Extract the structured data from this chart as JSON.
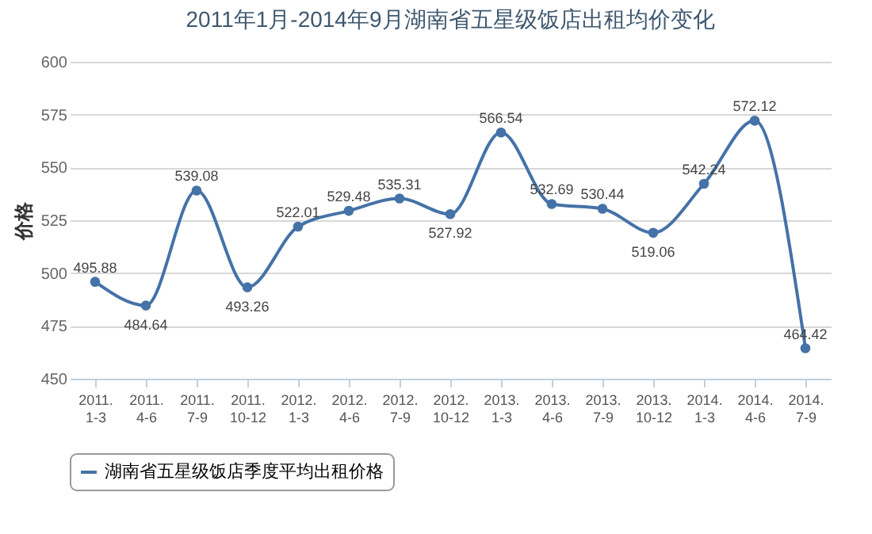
{
  "chart_data": {
    "type": "line",
    "title": "2011年1月-2014年9月湖南省五星级饭店出租均价变化",
    "ylabel": "价格",
    "categories": [
      "2011.1-3",
      "2011.4-6",
      "2011.7-9",
      "2011.10-12",
      "2012.1-3",
      "2012.4-6",
      "2012.7-9",
      "2012.10-12",
      "2013.1-3",
      "2013.4-6",
      "2013.7-9",
      "2013.10-12",
      "2014.1-3",
      "2014.4-6",
      "2014.7-9"
    ],
    "series": [
      {
        "name": "湖南省五星级饭店季度平均出租价格",
        "color": "#4572a7",
        "values": [
          495.88,
          484.64,
          539.08,
          493.26,
          522.01,
          529.48,
          535.31,
          527.92,
          566.54,
          532.69,
          530.44,
          519.06,
          542.24,
          572.12,
          464.42
        ]
      }
    ],
    "ylim": [
      450,
      600
    ],
    "yticks": [
      450,
      475,
      500,
      525,
      550,
      575,
      600
    ],
    "grid": "y",
    "legend": "bottom",
    "marker": "circle",
    "line_style": "solid",
    "data_labels": true
  }
}
